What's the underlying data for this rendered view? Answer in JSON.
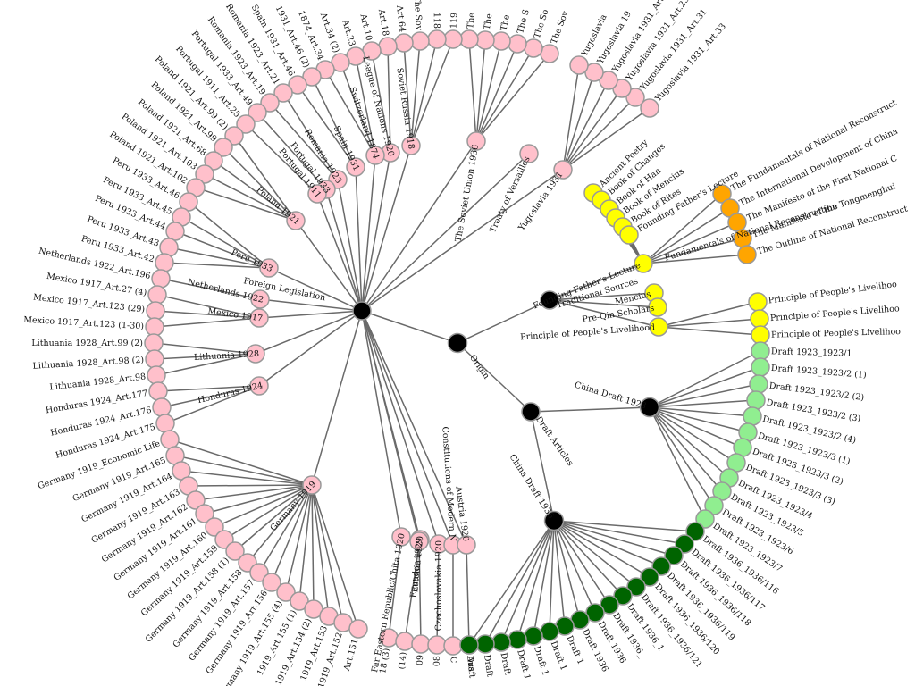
{
  "colors": {
    "origin": "#000000",
    "foreign_legislation": "#ffc0cb",
    "traditional_sources": "#ffff00",
    "sun_yat_sen": "#ffa500",
    "draft_1923": "#90ee90",
    "draft_1936": "#006400",
    "link": "#6a6a6a",
    "node_stroke": "#999999"
  },
  "tree": {
    "label": "Origin",
    "children": [
      {
        "label": "Foreign Legislation",
        "children": [
          {
            "label": "Yugoslavia 1931",
            "children": [
              {
                "label": "Yugoslavia 1931_Art.33"
              },
              {
                "label": "Yugoslavia 1931_Art.31"
              },
              {
                "label": "Yugoslavia 1931_Art.23"
              },
              {
                "label": "Yugoslavia 1931_Art"
              },
              {
                "label": "Yugoslavia 19"
              },
              {
                "label": "Yugoslavia"
              }
            ]
          },
          {
            "label": "Treaty of Versailles",
            "children": []
          },
          {
            "label": "The Soviet Union 1936",
            "children": [
              {
                "label": "The Sov"
              },
              {
                "label": "The So"
              },
              {
                "label": "The S"
              },
              {
                "label": "The"
              },
              {
                "label": "The"
              },
              {
                "label": "The"
              }
            ]
          },
          {
            "label": "Soviet Russia 1918",
            "children": [
              {
                "label": "119"
              },
              {
                "label": "118"
              },
              {
                "label": "The Sov"
              },
              {
                "label": "Art.64"
              }
            ]
          },
          {
            "label": "League of Nations 1920",
            "children": [
              {
                "label": "Art.18"
              },
              {
                "label": "Art.10"
              }
            ]
          },
          {
            "label": "Switzerland 1874",
            "children": [
              {
                "label": "Art.23"
              },
              {
                "label": "Art.34 (2)"
              },
              {
                "label": "1874_Art.34"
              }
            ]
          },
          {
            "label": "Spain 1931",
            "children": [
              {
                "label": "1931_Art.46 (2)"
              },
              {
                "label": "Spain 1931_Art.46"
              }
            ]
          },
          {
            "label": "Romania 1923",
            "children": [
              {
                "label": "Romania 1923_Art.21"
              },
              {
                "label": "Romania 1923_Art.19"
              }
            ]
          },
          {
            "label": "Portugal 1933",
            "children": [
              {
                "label": "Portugal 1933_Art.49"
              }
            ]
          },
          {
            "label": "Portugal 1911",
            "children": [
              {
                "label": "Portugal 1911_Art.25"
              }
            ]
          },
          {
            "label": "Poland 1921",
            "children": [
              {
                "label": "Poland 1921_Art.99 (2)"
              },
              {
                "label": "Poland 1921_Art.99"
              },
              {
                "label": "Poland 1921_Art.68"
              },
              {
                "label": "Poland 1921_Art.103"
              },
              {
                "label": "Poland 1921_Art.102"
              }
            ]
          },
          {
            "label": "Peru 1933",
            "children": [
              {
                "label": "Peru 1933_Art.46"
              },
              {
                "label": "Peru 1933_Art.45"
              },
              {
                "label": "Peru 1933_Art.44"
              },
              {
                "label": "Peru 1933_Art.43"
              },
              {
                "label": "Peru 1933_Art.42"
              }
            ]
          },
          {
            "label": "Netherlands 1922",
            "children": [
              {
                "label": "Netherlands 1922_Art.196"
              }
            ]
          },
          {
            "label": "Mexico 1917",
            "children": [
              {
                "label": "Mexico 1917_Art.27 (4)"
              },
              {
                "label": "Mexico 1917_Art.123 (29)"
              },
              {
                "label": "Mexico 1917_Art.123 (1-30)"
              }
            ]
          },
          {
            "label": "Lithuania 1928",
            "children": [
              {
                "label": "Lithuania 1928_Art.99 (2)"
              },
              {
                "label": "Lithuania 1928_Art.98 (2)"
              },
              {
                "label": "Lithuania 1928_Art.98"
              }
            ]
          },
          {
            "label": "Honduras 1924",
            "children": [
              {
                "label": "Honduras 1924_Art.177"
              },
              {
                "label": "Honduras 1924_Art.176"
              },
              {
                "label": "Honduras 1924_Art.175"
              }
            ]
          },
          {
            "label": "Germany 1919",
            "children": [
              {
                "label": "Germany 1919_Economic Life"
              },
              {
                "label": "Germany 1919_Art.165"
              },
              {
                "label": "Germany 1919_Art.164"
              },
              {
                "label": "Germany 1919_Art.163"
              },
              {
                "label": "Germany 1919_Art.162"
              },
              {
                "label": "Germany 1919_Art.161"
              },
              {
                "label": "Germany 1919_Art.160"
              },
              {
                "label": "Germany 1919_Art.159"
              },
              {
                "label": "Germany 1919_Art.158 (1)"
              },
              {
                "label": "Germany 1919_Art.158"
              },
              {
                "label": "Germany 1919_Art.157"
              },
              {
                "label": "Germany 1919_Art.156"
              },
              {
                "label": "Germany 1919_Art.155 (4)"
              },
              {
                "label": "1919_Art.155 (1)"
              },
              {
                "label": "1919_Art.154 (2)"
              },
              {
                "label": "1919_Art.153"
              },
              {
                "label": "1919_Art.152"
              },
              {
                "label": "Art.151"
              }
            ]
          },
          {
            "label": "Far Eastern Republic/Chita 1920",
            "children": [
              {
                "label": "18 (3)"
              }
            ]
          },
          {
            "label": "Estonia 1920",
            "children": [
              {
                "label": "(14)"
              }
            ]
          },
          {
            "label": "Ecuador 1929",
            "children": [
              {
                "label": "09"
              }
            ]
          },
          {
            "label": "Czechoslovakia 1920",
            "children": [
              {
                "label": "08"
              }
            ]
          },
          {
            "label": "Constitutions of Modern N",
            "children": [
              {
                "label": "C"
              }
            ]
          },
          {
            "label": "Austria 1920",
            "children": [
              {
                "label": "Aus"
              }
            ]
          }
        ]
      },
      {
        "label": "Traditional Sources",
        "children": [
          {
            "label": "Founding Father's Lecture",
            "children": [
              {
                "label": "Ancient Poetry"
              },
              {
                "label": "Book of Changes"
              },
              {
                "label": "Book of Han"
              },
              {
                "label": "Book of Mencius"
              },
              {
                "label": "Book of Rites"
              },
              {
                "label": "Founding Father's Lecture"
              }
            ]
          },
          {
            "label": "Fundamentals of National Reconstruction",
            "children": [
              {
                "label": "The Fundamentals of National Reconstruct"
              },
              {
                "label": "The International Development of China"
              },
              {
                "label": "The Manifesto of the First National C"
              },
              {
                "label": "The Manifesto of the Tongmenghui"
              },
              {
                "label": "The Outline of National Reconstruct"
              }
            ]
          },
          {
            "label": "Mencius",
            "children": []
          },
          {
            "label": "Pre-Qin Scholars",
            "children": []
          },
          {
            "label": "Principle of People's Livelihood",
            "children": [
              {
                "label": "Principle of People's Livelihoo"
              },
              {
                "label": "Principle of People's Livelihoo"
              },
              {
                "label": "Principle of People's Livelihoo"
              }
            ]
          }
        ]
      },
      {
        "label": "Draft Articles",
        "children": [
          {
            "label": "China Draft 1923",
            "children": [
              {
                "label": "Draft 1923_1923/1"
              },
              {
                "label": "Draft 1923_1923/2 (1)"
              },
              {
                "label": "Draft 1923_1923/2 (2)"
              },
              {
                "label": "Draft 1923_1923/2 (3)"
              },
              {
                "label": "Draft 1923_1923/2 (4)"
              },
              {
                "label": "Draft 1923_1923/3 (1)"
              },
              {
                "label": "Draft 1923_1923/3 (2)"
              },
              {
                "label": "Draft 1923_1923/3 (3)"
              },
              {
                "label": "Draft 1923_1923/4"
              },
              {
                "label": "Draft 1923_1923/5"
              },
              {
                "label": "Draft 1923_1923/6"
              },
              {
                "label": "Draft 1923_1923/7"
              }
            ]
          },
          {
            "label": "China Draft 1936",
            "children": [
              {
                "label": "Draft 1936_1936/116"
              },
              {
                "label": "Draft 1936_1936/117"
              },
              {
                "label": "Draft 1936_1936/118"
              },
              {
                "label": "Draft 1936_1936/119"
              },
              {
                "label": "Draft 1936_1936/120"
              },
              {
                "label": "Draft 1936_1936/121"
              },
              {
                "label": "Draft 1936_1"
              },
              {
                "label": "Draft 1936_"
              },
              {
                "label": "Draft 1936"
              },
              {
                "label": "Draft 1936"
              },
              {
                "label": "Draft 1"
              },
              {
                "label": "Draft 1"
              },
              {
                "label": "Draft 1"
              },
              {
                "label": "Draft 1"
              },
              {
                "label": "Draft"
              },
              {
                "label": "Draft"
              },
              {
                "label": "Draft"
              }
            ]
          }
        ]
      }
    ]
  }
}
